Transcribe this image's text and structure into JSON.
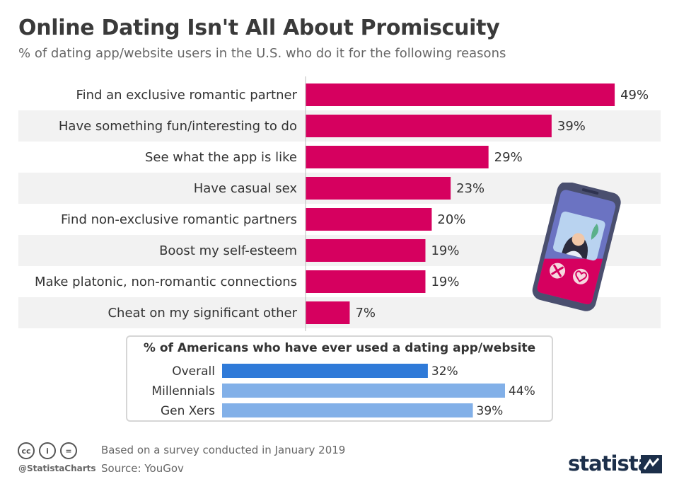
{
  "header": {
    "title": "Online Dating Isn't All About Promiscuity",
    "subtitle": "% of dating app/website users in the U.S. who do it for the following reasons"
  },
  "chart_data": [
    {
      "type": "bar",
      "orientation": "horizontal",
      "categories": [
        "Find an exclusive romantic partner",
        "Have something fun/interesting to do",
        "See what the app is like",
        "Have casual sex",
        "Find non-exclusive romantic partners",
        "Boost my self-esteem",
        "Make platonic, non-romantic connections",
        "Cheat on my significant other"
      ],
      "values": [
        49,
        39,
        29,
        23,
        20,
        19,
        19,
        7
      ],
      "value_labels": [
        "49%",
        "39%",
        "29%",
        "23%",
        "20%",
        "19%",
        "19%",
        "7%"
      ],
      "unit": "%",
      "xlim": [
        0,
        50
      ],
      "colors": {
        "bar": "#d6005f",
        "band": "#f2f2f2"
      }
    },
    {
      "type": "bar",
      "orientation": "horizontal",
      "title": "% of Americans who have ever used a dating app/website",
      "categories": [
        "Overall",
        "Millennials",
        "Gen Xers"
      ],
      "values": [
        32,
        44,
        39
      ],
      "value_labels": [
        "32%",
        "44%",
        "39%"
      ],
      "unit": "%",
      "xlim": [
        0,
        44
      ],
      "colors": {
        "highlight": "#2f7ad8",
        "normal": "#82b0e8"
      }
    }
  ],
  "footer": {
    "handle": "@StatistaCharts",
    "note": "Based on a survey conducted in January 2019",
    "source": "Source: YouGov",
    "brand": "statista",
    "license_icons": [
      "cc-icon",
      "person-icon",
      "equals-icon"
    ],
    "license_glyphs": [
      "cc",
      "i",
      "="
    ]
  },
  "illustration": {
    "name": "dating-app-phone",
    "primary": "#d6005f",
    "frame": "#4a4f6f",
    "screen": "#6b73c2"
  }
}
